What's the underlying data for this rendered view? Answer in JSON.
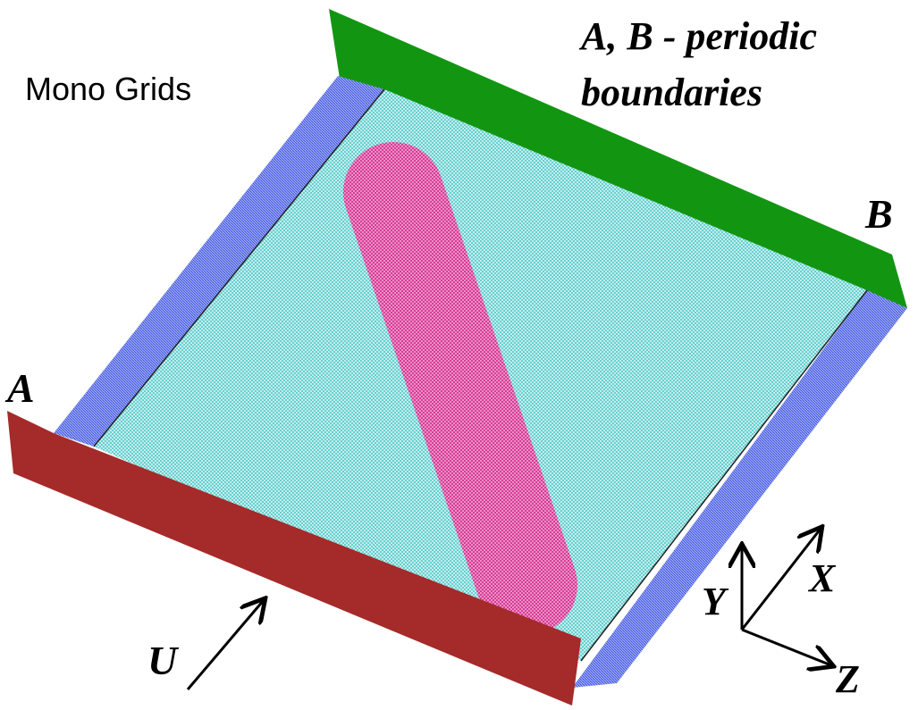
{
  "caption": "Mono Grids",
  "heading": [
    "A, B - periodic",
    "boundaries"
  ],
  "boundaries": {
    "a": "A",
    "b": "B"
  },
  "flow": "U",
  "axes": {
    "y": "Y",
    "x": "X",
    "z": "Z"
  }
}
